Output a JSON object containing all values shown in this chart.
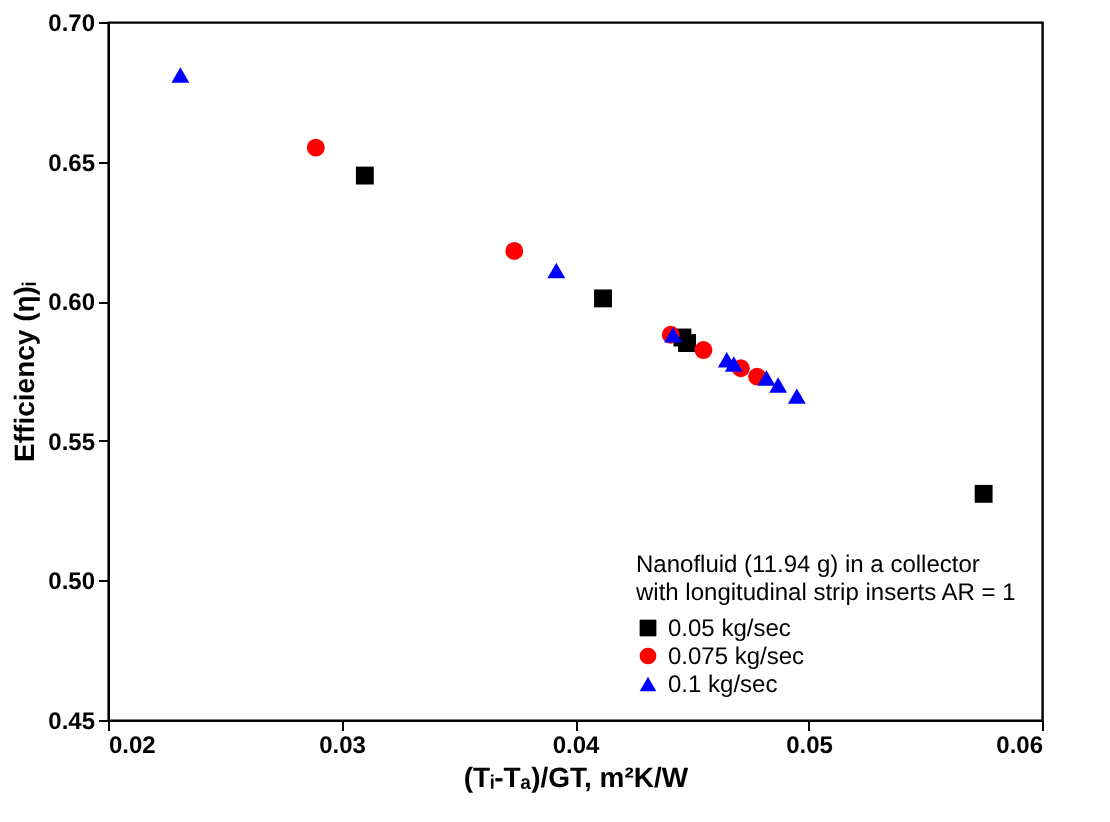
{
  "chart_data": {
    "type": "scatter",
    "xlabel": "(Tᵢ-Tₐ)/GT, m²K/W",
    "ylabel": "Efficiency (η)ᵢ",
    "legend_title": "Nanofluid (11.94 g) in a collector\nwith longitudinal strip inserts AR = 1",
    "legend": "bottom right",
    "grid": false,
    "xlim": [
      0.02,
      0.06
    ],
    "xticks": [
      0.02,
      0.03,
      0.04,
      0.05,
      0.06
    ],
    "ylim": [
      0.45,
      0.7
    ],
    "yticks": [
      0.45,
      {
        "value": 0.5,
        "label": "0.50"
      },
      0.55,
      {
        "value": 0.6,
        "label": "0.60"
      },
      0.65,
      {
        "value": 0.7,
        "label": "0.70"
      }
    ],
    "series": [
      {
        "name": "0.05 kg/sec",
        "color": "#000000",
        "marker": "square",
        "x": [
          0.031,
          0.0412,
          0.0446,
          0.0448,
          0.0575
        ],
        "values": [
          0.645,
          0.601,
          0.587,
          0.585,
          0.531
        ]
      },
      {
        "name": "0.075 kg/sec",
        "color": "#ff0000",
        "marker": "circle",
        "x": [
          0.0289,
          0.0374,
          0.0441,
          0.0455,
          0.0471,
          0.0478
        ],
        "values": [
          0.655,
          0.618,
          0.588,
          0.5825,
          0.576,
          0.573
        ]
      },
      {
        "name": "0.1 kg/sec",
        "color": "#0000ff",
        "marker": "triangle",
        "x": [
          0.0231,
          0.0392,
          0.0442,
          0.0465,
          0.0468,
          0.0482,
          0.0487,
          0.0495
        ],
        "values": [
          0.681,
          0.611,
          0.588,
          0.579,
          0.5775,
          0.5725,
          0.57,
          0.566
        ]
      }
    ]
  }
}
